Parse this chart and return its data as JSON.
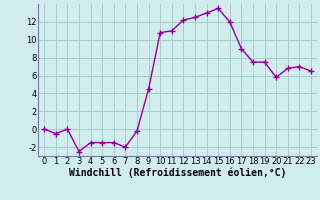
{
  "x": [
    0,
    1,
    2,
    3,
    4,
    5,
    6,
    7,
    8,
    9,
    10,
    11,
    12,
    13,
    14,
    15,
    16,
    17,
    18,
    19,
    20,
    21,
    22,
    23
  ],
  "y": [
    0,
    -0.5,
    0,
    -2.5,
    -1.5,
    -1.5,
    -1.5,
    -2,
    -0.2,
    4.5,
    10.8,
    11,
    12.2,
    12.5,
    13,
    13.5,
    12,
    9,
    7.5,
    7.5,
    5.8,
    6.8,
    7,
    6.5
  ],
  "line_color": "#990099",
  "marker": "+",
  "marker_size": 4,
  "marker_lw": 1.0,
  "line_width": 1.0,
  "bg_color": "#d0ecec",
  "grid_color": "#aacccc",
  "xlabel": "Windchill (Refroidissement éolien,°C)",
  "xlabel_fontsize": 7,
  "tick_fontsize": 6,
  "ylim": [
    -3,
    14
  ],
  "yticks": [
    -2,
    0,
    2,
    4,
    6,
    8,
    10,
    12
  ],
  "xticks": [
    0,
    1,
    2,
    3,
    4,
    5,
    6,
    7,
    8,
    9,
    10,
    11,
    12,
    13,
    14,
    15,
    16,
    17,
    18,
    19,
    20,
    21,
    22,
    23
  ],
  "spine_color": "#7777aa"
}
